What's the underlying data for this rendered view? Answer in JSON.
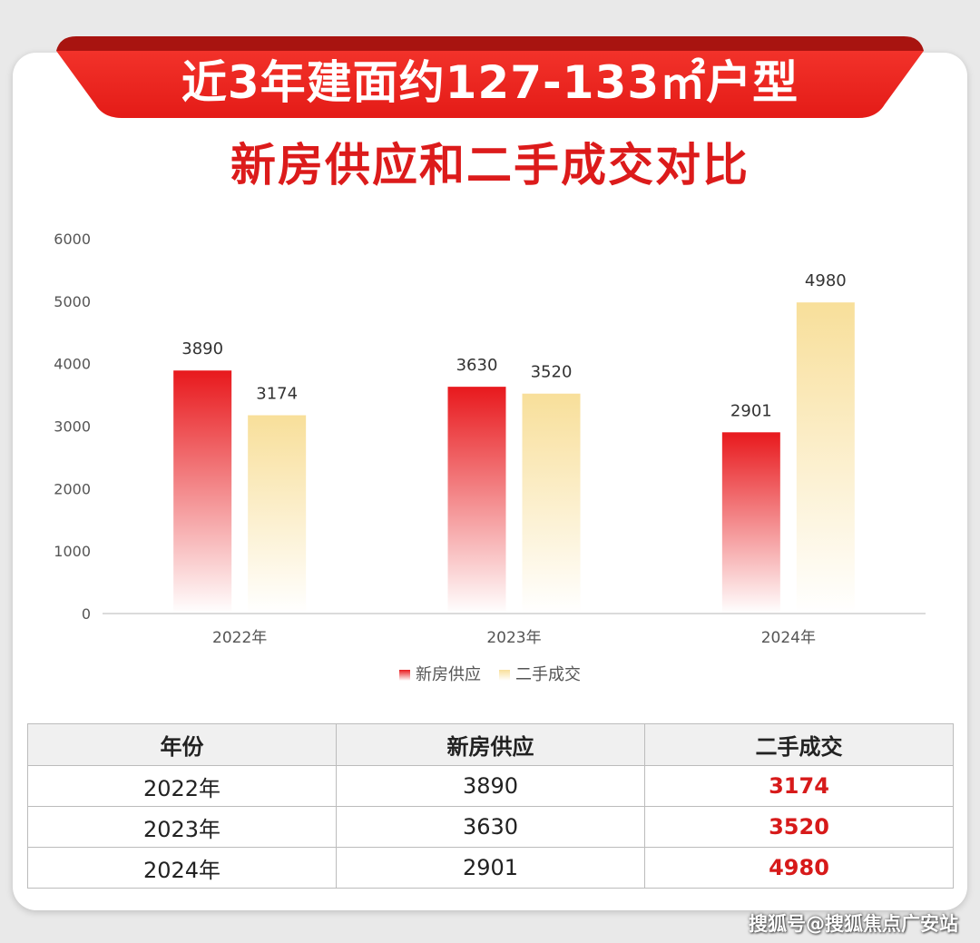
{
  "header": {
    "banner_title": "近3年建面约127-133㎡户型",
    "subtitle": "新房供应和二手成交对比"
  },
  "chart_data": {
    "type": "bar",
    "title": "",
    "xlabel": "",
    "ylabel": "",
    "categories": [
      "2022年",
      "2023年",
      "2024年"
    ],
    "series": [
      {
        "name": "新房供应",
        "values": [
          3890,
          3630,
          2901
        ]
      },
      {
        "name": "二手成交",
        "values": [
          3174,
          3520,
          4980
        ]
      }
    ],
    "ylim": [
      0,
      6000
    ],
    "yticks": [
      0,
      1000,
      2000,
      3000,
      4000,
      5000,
      6000
    ],
    "grid": false,
    "legend_position": "bottom",
    "colors": {
      "新房供应": "#e8191d",
      "二手成交": "#f8df9a"
    }
  },
  "table": {
    "headers": [
      "年份",
      "新房供应",
      "二手成交"
    ],
    "rows": [
      [
        "2022年",
        "3890",
        "3174"
      ],
      [
        "2023年",
        "3630",
        "3520"
      ],
      [
        "2024年",
        "2901",
        "4980"
      ]
    ],
    "highlight_color": "#d71a1a"
  },
  "watermark": "搜狐号@搜狐焦点广安站"
}
